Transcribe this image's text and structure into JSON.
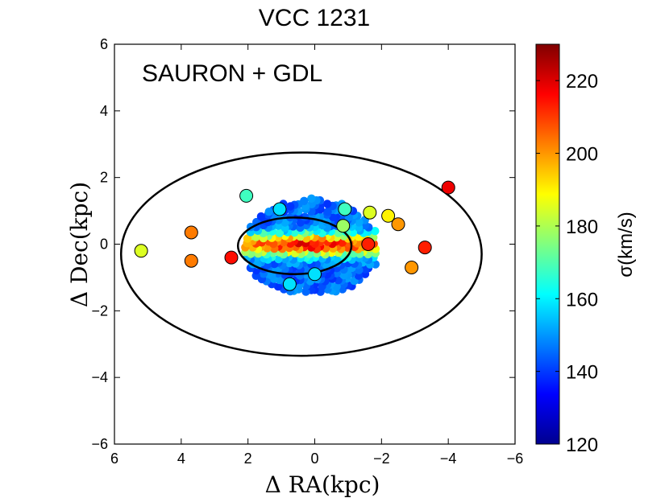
{
  "chart_data": {
    "type": "scatter",
    "title": "VCC 1231",
    "annotation": "SAURON + GDL",
    "xlabel": "Δ RA(kpc)",
    "ylabel": "Δ Dec(kpc)",
    "xlim": [
      6,
      -6
    ],
    "ylim": [
      -6,
      6
    ],
    "xticks": [
      "6",
      "4",
      "2",
      "0",
      "−2",
      "−4",
      "−6"
    ],
    "yticks": [
      "6",
      "4",
      "2",
      "0",
      "−2",
      "−4",
      "−6"
    ],
    "colorbar": {
      "label": "σ(km/s)",
      "range": [
        120,
        230
      ],
      "ticks": [
        "120",
        "140",
        "160",
        "180",
        "200",
        "220"
      ],
      "colormap": "jet"
    },
    "ellipses": [
      {
        "cx": 0.4,
        "cy": -0.3,
        "a": 5.4,
        "b": 3.05,
        "color": "#000000"
      },
      {
        "cx": 0.6,
        "cy": -0.05,
        "a": 1.7,
        "b": 0.85,
        "color": "#000000"
      }
    ],
    "gdl_points": [
      {
        "x": 5.2,
        "y": -0.2,
        "sigma": 185
      },
      {
        "x": 3.7,
        "y": 0.35,
        "sigma": 203
      },
      {
        "x": 3.7,
        "y": -0.5,
        "sigma": 203
      },
      {
        "x": 2.5,
        "y": -0.4,
        "sigma": 215
      },
      {
        "x": 2.05,
        "y": 1.45,
        "sigma": 168
      },
      {
        "x": 1.05,
        "y": 1.05,
        "sigma": 158
      },
      {
        "x": 0.75,
        "y": -1.2,
        "sigma": 158
      },
      {
        "x": 0.0,
        "y": -0.9,
        "sigma": 158
      },
      {
        "x": -0.9,
        "y": 1.05,
        "sigma": 168
      },
      {
        "x": -0.85,
        "y": 0.55,
        "sigma": 178
      },
      {
        "x": -1.65,
        "y": 0.95,
        "sigma": 185
      },
      {
        "x": -1.6,
        "y": 0.0,
        "sigma": 213
      },
      {
        "x": -2.2,
        "y": 0.85,
        "sigma": 190
      },
      {
        "x": -2.5,
        "y": 0.6,
        "sigma": 200
      },
      {
        "x": -2.9,
        "y": -0.7,
        "sigma": 200
      },
      {
        "x": -3.3,
        "y": -0.1,
        "sigma": 213
      },
      {
        "x": -4.0,
        "y": 1.7,
        "sigma": 218
      }
    ]
  }
}
